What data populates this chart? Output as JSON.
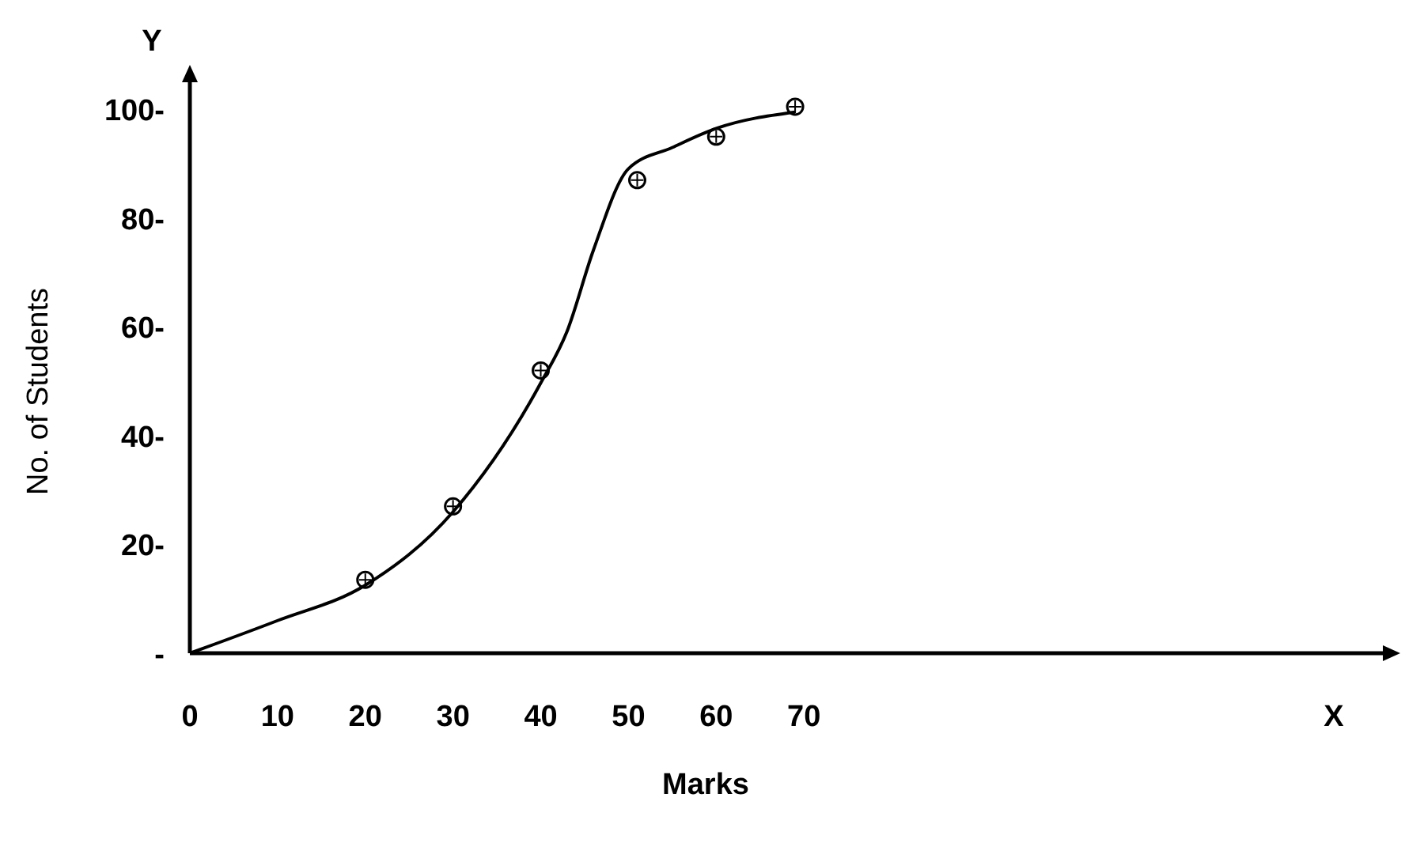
{
  "chart_data": {
    "type": "scatter",
    "xlabel": "Marks",
    "ylabel": "No. of Students",
    "annotations": [
      "X",
      "Y"
    ],
    "xlim": [
      0,
      136
    ],
    "ylim": [
      0,
      105
    ],
    "xticks": [
      0,
      10,
      20,
      30,
      40,
      50,
      60,
      70
    ],
    "yticks": [
      {
        "value": 0,
        "label": "-"
      },
      {
        "value": 20,
        "label": "20-"
      },
      {
        "value": 40,
        "label": "40-"
      },
      {
        "value": 60,
        "label": "60-"
      },
      {
        "value": 80,
        "label": "80-"
      },
      {
        "value": 100,
        "label": "100-"
      }
    ],
    "series": [
      {
        "type": "line",
        "color": "#000000",
        "x": [
          0,
          10,
          20,
          30,
          40,
          43,
          46,
          50,
          55,
          60,
          69
        ],
        "values": [
          0,
          6,
          12.5,
          26,
          49.7,
          59.2,
          74.1,
          89.1,
          93,
          96.5,
          99.5
        ],
        "marker": "none"
      },
      {
        "color": "#000000",
        "x": [
          20,
          30,
          40,
          51,
          60,
          69
        ],
        "values": [
          13.5,
          27,
          52,
          87,
          95,
          100.5
        ]
      }
    ]
  }
}
